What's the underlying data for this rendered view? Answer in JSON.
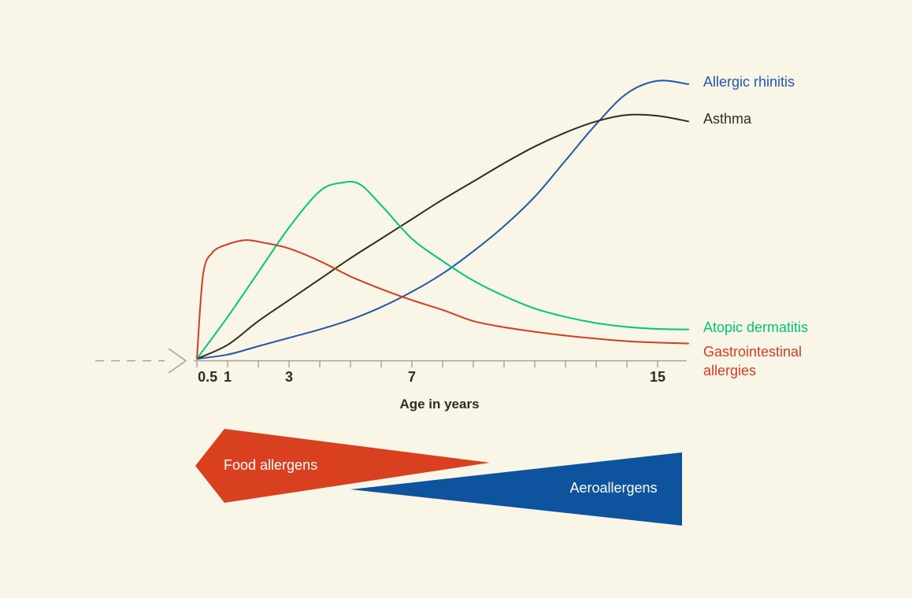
{
  "title": "Allergic march chart",
  "colors": {
    "background": "#f9f6e7",
    "axis": "#a5a294",
    "tick_text": "#2e2c26",
    "rhinitis": "#2057a8",
    "asthma": "#2e2c26",
    "dermatitis": "#00c47c",
    "gastro": "#d63c22",
    "food_arrow": "#d8401f",
    "aero_arrow": "#0e539e",
    "arrow_text": "#ffffff"
  },
  "chart_data": {
    "type": "line",
    "title": "",
    "xlabel": "Age in years",
    "ylabel": "",
    "y_axis_visible": false,
    "grid": false,
    "legend_position": "right of curve ends",
    "ylim": [
      0,
      100
    ],
    "y_note": "relative prevalence, no y-axis shown; values estimated 0-100",
    "x_axis_note": "axis units: 0 = age 0.5 yr, 1..15 = age in years, 16 = unlabeled curve end",
    "x_tick_units": [
      0,
      1,
      2,
      3,
      4,
      5,
      6,
      7,
      8,
      9,
      10,
      11,
      12,
      13,
      14,
      15
    ],
    "x_tick_labels": [
      {
        "text": "0.5",
        "unit": 0.35
      },
      {
        "text": "1",
        "unit": 1
      },
      {
        "text": "3",
        "unit": 3
      },
      {
        "text": "7",
        "unit": 7
      },
      {
        "text": "15",
        "unit": 15
      }
    ],
    "series": [
      {
        "name": "Allergic rhinitis",
        "color": "#2057a8",
        "points": [
          [
            0,
            0
          ],
          [
            1,
            1.5
          ],
          [
            2,
            4.5
          ],
          [
            3,
            7.5
          ],
          [
            4,
            10.5
          ],
          [
            5,
            14
          ],
          [
            6,
            18.5
          ],
          [
            7,
            24
          ],
          [
            8,
            30.5
          ],
          [
            9,
            38.5
          ],
          [
            10,
            47.5
          ],
          [
            11,
            58
          ],
          [
            12,
            71
          ],
          [
            13,
            84
          ],
          [
            14,
            95
          ],
          [
            15,
            99.5
          ],
          [
            16,
            98.3
          ]
        ]
      },
      {
        "name": "Asthma",
        "color": "#2e2c26",
        "points": [
          [
            0,
            0
          ],
          [
            1,
            5
          ],
          [
            2,
            13.5
          ],
          [
            3,
            21
          ],
          [
            4,
            28.5
          ],
          [
            5,
            36
          ],
          [
            6,
            43
          ],
          [
            7,
            50
          ],
          [
            8,
            57
          ],
          [
            9,
            63.5
          ],
          [
            10,
            70
          ],
          [
            11,
            76
          ],
          [
            12,
            81
          ],
          [
            13,
            85
          ],
          [
            14,
            87.3
          ],
          [
            15,
            87
          ],
          [
            16,
            85
          ]
        ]
      },
      {
        "name": "Atopic dermatitis",
        "color": "#00c47c",
        "points": [
          [
            0,
            0
          ],
          [
            1,
            15
          ],
          [
            2,
            31
          ],
          [
            3,
            47
          ],
          [
            4,
            60
          ],
          [
            4.7,
            63
          ],
          [
            5.3,
            62.5
          ],
          [
            6,
            55
          ],
          [
            7,
            43
          ],
          [
            8,
            35
          ],
          [
            9,
            28
          ],
          [
            10,
            22.5
          ],
          [
            11,
            18
          ],
          [
            12,
            15
          ],
          [
            13,
            12.8
          ],
          [
            14,
            11.4
          ],
          [
            15,
            10.7
          ],
          [
            16,
            10.5
          ]
        ]
      },
      {
        "name": "Gastrointestinal allergies",
        "color": "#d63c22",
        "points": [
          [
            0,
            0
          ],
          [
            0.2,
            30
          ],
          [
            0.5,
            38
          ],
          [
            1,
            41
          ],
          [
            1.6,
            42.5
          ],
          [
            2.2,
            41.5
          ],
          [
            3,
            39.5
          ],
          [
            4,
            35
          ],
          [
            5,
            29.5
          ],
          [
            6,
            25
          ],
          [
            7,
            21
          ],
          [
            8,
            17.5
          ],
          [
            9,
            13.5
          ],
          [
            10,
            11.3
          ],
          [
            11,
            9.7
          ],
          [
            12,
            8.3
          ],
          [
            13,
            7.2
          ],
          [
            14,
            6.3
          ],
          [
            15,
            5.8
          ],
          [
            16,
            5.5
          ]
        ]
      }
    ]
  },
  "legend": {
    "rhinitis": "Allergic rhinitis",
    "asthma": "Asthma",
    "dermatitis": "Atopic dermatitis",
    "gastro": "Gastrointestinal allergies"
  },
  "axis": {
    "label": "Age in years"
  },
  "arrows": {
    "food_label": "Food allergens",
    "aero_label": "Aeroallergens"
  }
}
